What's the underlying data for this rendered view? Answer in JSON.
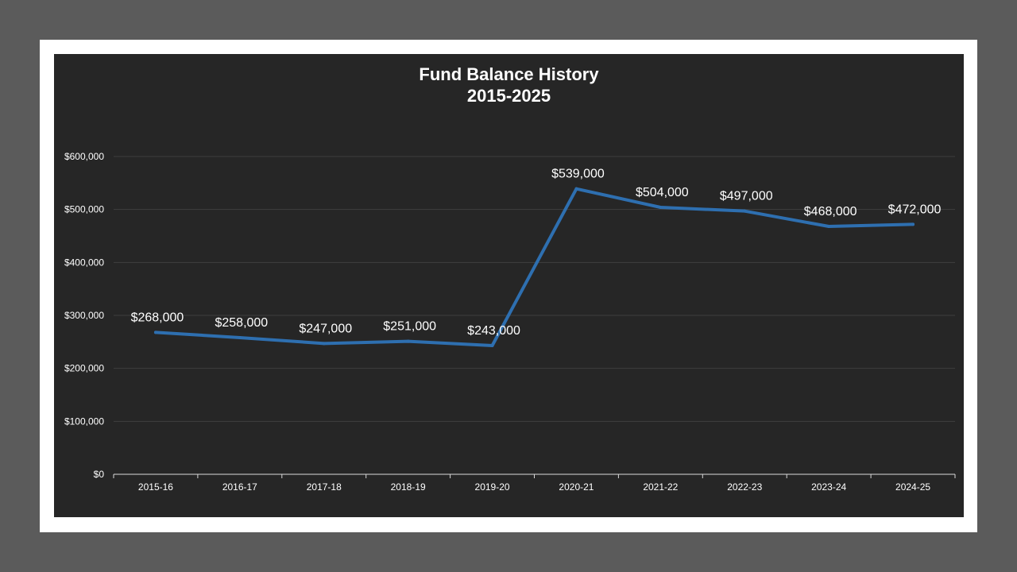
{
  "chart_data": {
    "type": "line",
    "title": "Fund Balance History",
    "subtitle": "2015-2025",
    "categories": [
      "2015-16",
      "2016-17",
      "2017-18",
      "2018-19",
      "2019-20",
      "2020-21",
      "2021-22",
      "2022-23",
      "2023-24",
      "2024-25"
    ],
    "series": [
      {
        "values": [
          268000,
          258000,
          247000,
          251000,
          243000,
          539000,
          504000,
          497000,
          468000,
          472000
        ],
        "data_labels": [
          "$268,000",
          "$258,000",
          "$247,000",
          "$251,000",
          "$243,000",
          "$539,000",
          "$504,000",
          "$497,000",
          "$468,000",
          "$472,000"
        ],
        "color": "#2e6fb0"
      }
    ],
    "y_ticks": [
      0,
      100000,
      200000,
      300000,
      400000,
      500000,
      600000
    ],
    "y_tick_labels": [
      "$0",
      "$100,000",
      "$200,000",
      "$300,000",
      "$400,000",
      "$500,000",
      "$600,000"
    ],
    "ylim": [
      0,
      600000
    ],
    "xlabel": "",
    "ylabel": "",
    "grid": true,
    "legend": "none",
    "colors": {
      "background": "#262626",
      "frame": "#ffffff",
      "outer": "#5b5b5b",
      "gridline": "#3f3f3f",
      "axis": "#d9d9d9",
      "text": "#ffffff"
    }
  }
}
